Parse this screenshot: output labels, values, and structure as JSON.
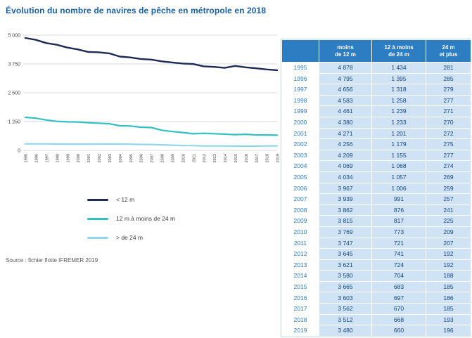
{
  "title": "Évolution du nombre de navires de pêche en métropole en 2018",
  "source": "Source : fichier flotte IFREMER 2019",
  "colors": {
    "title": "#1a5fa8",
    "series_lt12": "#1e2a56",
    "series_12to24": "#31c0c4",
    "series_gt24": "#92d6ee",
    "table_header_bg": "#2d7dc3",
    "table_value_bg": "#cfe3f5",
    "table_year_text": "#2d7dc3",
    "table_value_text": "#17457f",
    "grid": "#d9d9d9"
  },
  "chart_data": {
    "type": "line",
    "title": "Évolution du nombre de navires de pêche en métropole en 2018",
    "x": [
      1995,
      1996,
      1997,
      1998,
      1999,
      2000,
      2001,
      2002,
      2003,
      2004,
      2005,
      2006,
      2007,
      2008,
      2009,
      2010,
      2011,
      2012,
      2013,
      2014,
      2015,
      2016,
      2017,
      2018,
      2019
    ],
    "series": [
      {
        "name": "< 12 m",
        "color_key": "series_lt12",
        "values": [
          4878,
          4795,
          4656,
          4583,
          4461,
          4380,
          4271,
          4256,
          4209,
          4069,
          4034,
          3967,
          3939,
          3862,
          3815,
          3769,
          3747,
          3645,
          3621,
          3580,
          3665,
          3603,
          3562,
          3512,
          3480
        ]
      },
      {
        "name": "12 m à moins de 24 m",
        "color_key": "series_12to24",
        "values": [
          1434,
          1395,
          1318,
          1258,
          1239,
          1233,
          1201,
          1179,
          1155,
          1068,
          1057,
          1006,
          991,
          876,
          817,
          773,
          721,
          741,
          724,
          704,
          683,
          697,
          670,
          668,
          660
        ]
      },
      {
        "name": "> de 24 m",
        "color_key": "series_gt24",
        "values": [
          281,
          285,
          279,
          277,
          271,
          270,
          272,
          275,
          277,
          274,
          269,
          259,
          257,
          241,
          225,
          209,
          207,
          192,
          192,
          188,
          185,
          186,
          185,
          193,
          196
        ]
      }
    ],
    "ylim": [
      0,
      5000
    ],
    "yticks": [
      0,
      1250,
      2500,
      3750,
      5000
    ],
    "ytick_labels": [
      "0",
      "1 250",
      "2 500",
      "3 750",
      "5 000"
    ],
    "grid": true,
    "legend_position": "below-left"
  },
  "table": {
    "header_lines": [
      [
        "moins",
        "de 12 m"
      ],
      [
        "12 à moins",
        "de 24 m"
      ],
      [
        "24 m",
        "et plus"
      ]
    ],
    "rows": [
      {
        "year": "1995",
        "values": [
          "4 878",
          "1 434",
          "281"
        ]
      },
      {
        "year": "1996",
        "values": [
          "4 795",
          "1 395",
          "285"
        ]
      },
      {
        "year": "1997",
        "values": [
          "4 656",
          "1 318",
          "279"
        ]
      },
      {
        "year": "1998",
        "values": [
          "4 583",
          "1 258",
          "277"
        ]
      },
      {
        "year": "1999",
        "values": [
          "4 461",
          "1 239",
          "271"
        ]
      },
      {
        "year": "2000",
        "values": [
          "4 380",
          "1 233",
          "270"
        ]
      },
      {
        "year": "2001",
        "values": [
          "4 271",
          "1 201",
          "272"
        ]
      },
      {
        "year": "2002",
        "values": [
          "4 256",
          "1 179",
          "275"
        ]
      },
      {
        "year": "2003",
        "values": [
          "4 209",
          "1 155",
          "277"
        ]
      },
      {
        "year": "2004",
        "values": [
          "4 069",
          "1 068",
          "274"
        ]
      },
      {
        "year": "2005",
        "values": [
          "4 034",
          "1 057",
          "269"
        ]
      },
      {
        "year": "2006",
        "values": [
          "3 967",
          "1 006",
          "259"
        ]
      },
      {
        "year": "2007",
        "values": [
          "3 939",
          "991",
          "257"
        ]
      },
      {
        "year": "2008",
        "values": [
          "3 862",
          "876",
          "241"
        ]
      },
      {
        "year": "2009",
        "values": [
          "3 815",
          "817",
          "225"
        ]
      },
      {
        "year": "2010",
        "values": [
          "3 769",
          "773",
          "209"
        ]
      },
      {
        "year": "2011",
        "values": [
          "3 747",
          "721",
          "207"
        ]
      },
      {
        "year": "2012",
        "values": [
          "3 645",
          "741",
          "192"
        ]
      },
      {
        "year": "2013",
        "values": [
          "3 621",
          "724",
          "192"
        ]
      },
      {
        "year": "2014",
        "values": [
          "3 580",
          "704",
          "188"
        ]
      },
      {
        "year": "2015",
        "values": [
          "3 665",
          "683",
          "185"
        ]
      },
      {
        "year": "2016",
        "values": [
          "3 603",
          "697",
          "186"
        ]
      },
      {
        "year": "2017",
        "values": [
          "3 562",
          "670",
          "185"
        ]
      },
      {
        "year": "2018",
        "values": [
          "3 512",
          "668",
          "193"
        ]
      },
      {
        "year": "2019",
        "values": [
          "3 480",
          "660",
          "196"
        ]
      }
    ]
  }
}
